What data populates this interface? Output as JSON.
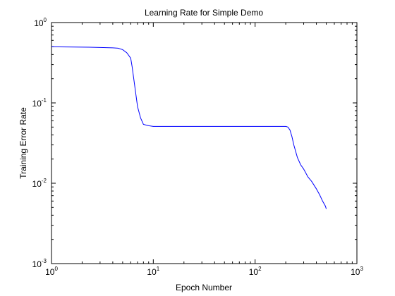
{
  "chart_data": {
    "type": "line",
    "title": "Learning Rate for Simple Demo",
    "xlabel": "Epoch Number",
    "ylabel": "Training Error Rate",
    "x_scale": "log",
    "y_scale": "log",
    "xlim": [
      1,
      1000
    ],
    "ylim": [
      0.001,
      1
    ],
    "x_ticks": [
      {
        "value": 1,
        "base": "10",
        "exp": "0"
      },
      {
        "value": 10,
        "base": "10",
        "exp": "1"
      },
      {
        "value": 100,
        "base": "10",
        "exp": "2"
      },
      {
        "value": 1000,
        "base": "10",
        "exp": "3"
      }
    ],
    "y_ticks": [
      {
        "value": 0.001,
        "base": "10",
        "exp": "-3"
      },
      {
        "value": 0.01,
        "base": "10",
        "exp": "-2"
      },
      {
        "value": 0.1,
        "base": "10",
        "exp": "-1"
      },
      {
        "value": 1,
        "base": "10",
        "exp": "0"
      }
    ],
    "grid": false,
    "legend": "none",
    "colors": {
      "line": "#0000ff",
      "axes": "#000000",
      "background": "#ffffff"
    },
    "series": [
      {
        "x": [
          1,
          2,
          3,
          4,
          4.5,
          5,
          5.5,
          6,
          6.2,
          6.5,
          7,
          7.5,
          8,
          9,
          10,
          12,
          15,
          20,
          30,
          50,
          80,
          100,
          130,
          170,
          200,
          210,
          220,
          230,
          240,
          250,
          260,
          280,
          300,
          330,
          360,
          400,
          430,
          460,
          490,
          500
        ],
        "y": [
          0.5,
          0.495,
          0.49,
          0.485,
          0.48,
          0.46,
          0.42,
          0.36,
          0.28,
          0.18,
          0.09,
          0.065,
          0.054,
          0.052,
          0.051,
          0.051,
          0.051,
          0.051,
          0.051,
          0.051,
          0.051,
          0.051,
          0.051,
          0.051,
          0.051,
          0.05,
          0.046,
          0.038,
          0.03,
          0.025,
          0.021,
          0.017,
          0.015,
          0.012,
          0.0105,
          0.0085,
          0.0072,
          0.006,
          0.0052,
          0.0048
        ]
      }
    ]
  }
}
